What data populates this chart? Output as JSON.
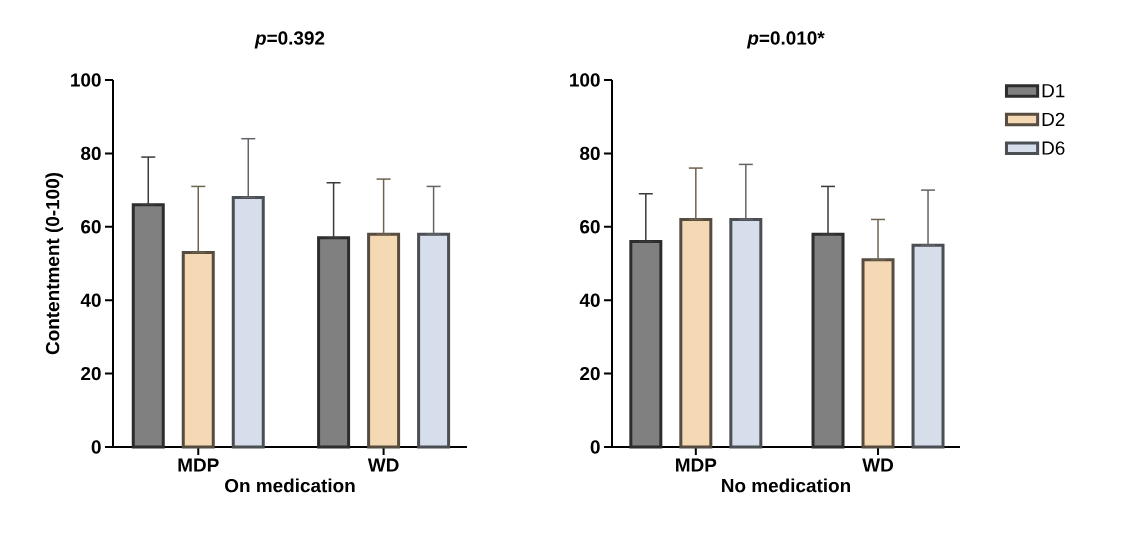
{
  "chart_data": [
    {
      "type": "bar",
      "title": "*p*=0.392",
      "xlabel": "On medication",
      "ylabel": "Contentment (0-100)",
      "categories": [
        "MDP",
        "WD"
      ],
      "ylim": [
        0,
        100
      ],
      "yticks": [
        0,
        20,
        40,
        60,
        80,
        100
      ],
      "legend": false,
      "series": [
        {
          "color": "#808080",
          "values": [
            66,
            57
          ],
          "errors": [
            [
              66,
              79
            ],
            [
              57,
              72
            ]
          ]
        },
        {
          "color": "#f5d9b4",
          "values": [
            53,
            58
          ],
          "errors": [
            [
              53,
              71
            ],
            [
              58,
              73
            ]
          ]
        },
        {
          "color": "#d5deea",
          "values": [
            68,
            58
          ],
          "errors": [
            [
              68,
              84
            ],
            [
              58,
              71
            ]
          ]
        }
      ]
    },
    {
      "type": "bar",
      "title": "*p*=0.010*",
      "xlabel": "No medication",
      "categories": [
        "MDP",
        "WD"
      ],
      "ylim": [
        0,
        100
      ],
      "yticks": [
        0,
        20,
        40,
        60,
        80,
        100
      ],
      "legend": "right",
      "series": [
        {
          "name": "D1",
          "color": "#808080",
          "values": [
            56,
            58
          ],
          "errors": [
            [
              56,
              69
            ],
            [
              58,
              71
            ]
          ]
        },
        {
          "name": "D2",
          "color": "#f5d9b4",
          "values": [
            62,
            51
          ],
          "errors": [
            [
              62,
              76
            ],
            [
              51,
              62
            ]
          ]
        },
        {
          "name": "D6",
          "color": "#d5deea",
          "values": [
            62,
            55
          ],
          "errors": [
            [
              62,
              77
            ],
            [
              55,
              70
            ]
          ]
        }
      ]
    }
  ]
}
